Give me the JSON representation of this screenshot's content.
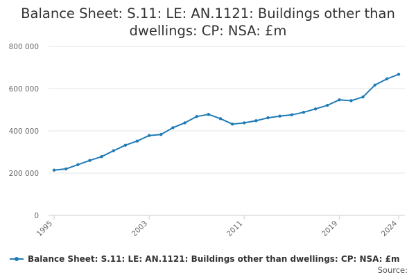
{
  "title": "Balance Sheet: S.11: LE: AN.1121: Buildings other than dwellings: CP: NSA: £m",
  "source_label": "Source:",
  "colors": {
    "series": "#1f7bb6",
    "grid": "#e6e6e6",
    "axis": "#cccccc",
    "text": "#666666"
  },
  "chart_data": {
    "type": "line",
    "title": "Balance Sheet: S.11: LE: AN.1121: Buildings other than dwellings: CP: NSA: £m",
    "xlabel": "",
    "ylabel": "",
    "x_tick_labels": [
      "1995",
      "2003",
      "2011",
      "2019",
      "2024"
    ],
    "y_tick_labels": [
      "0",
      "200 000",
      "400 000",
      "600 000",
      "800 000"
    ],
    "ylim": [
      0,
      800000
    ],
    "xlim": [
      1995,
      2024
    ],
    "grid": true,
    "legend_position": "bottom",
    "series": [
      {
        "name": "Balance Sheet: S.11: LE: AN.1121: Buildings other than dwellings: CP: NSA: £m",
        "x": [
          1995,
          1996,
          1997,
          1998,
          1999,
          2000,
          2001,
          2002,
          2003,
          2004,
          2005,
          2006,
          2007,
          2008,
          2009,
          2010,
          2011,
          2012,
          2013,
          2014,
          2015,
          2016,
          2017,
          2018,
          2019,
          2020,
          2021,
          2022,
          2023,
          2024
        ],
        "values": [
          214000,
          220000,
          240000,
          260000,
          278000,
          306000,
          332000,
          352000,
          378000,
          383000,
          415000,
          438000,
          468000,
          478000,
          458000,
          432000,
          438000,
          448000,
          462000,
          470000,
          476000,
          488000,
          504000,
          521000,
          547000,
          543000,
          561000,
          617000,
          646000,
          668000
        ]
      }
    ]
  }
}
